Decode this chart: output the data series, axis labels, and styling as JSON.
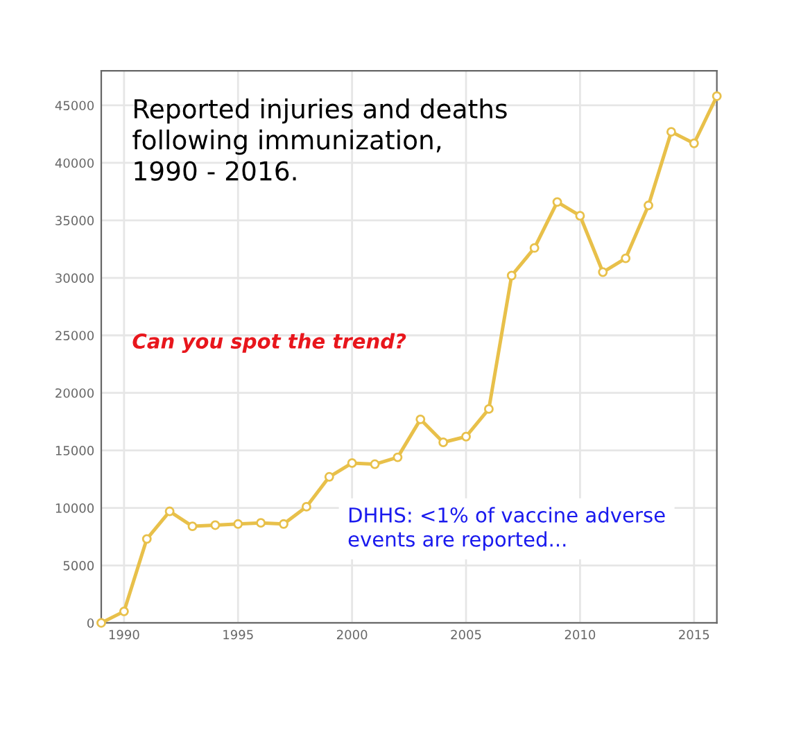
{
  "chart_data": {
    "type": "line",
    "title": "Reported injuries and deaths\nfollowing immunization,\n1990 - 2016.",
    "x": [
      1989,
      1990,
      1991,
      1992,
      1993,
      1994,
      1995,
      1996,
      1997,
      1998,
      1999,
      2000,
      2001,
      2002,
      2003,
      2004,
      2005,
      2006,
      2007,
      2008,
      2009,
      2010,
      2011,
      2012,
      2013,
      2014,
      2015,
      2016
    ],
    "series": [
      {
        "color": "#e8c04a",
        "values": [
          0,
          1000,
          7300,
          9700,
          8400,
          8500,
          8600,
          8700,
          8600,
          10100,
          12700,
          13900,
          13800,
          14400,
          17700,
          15700,
          16200,
          18600,
          30200,
          32600,
          36600,
          35400,
          30500,
          31700,
          36300,
          42700,
          41700,
          45800
        ]
      }
    ],
    "xlim": [
      1989,
      2016
    ],
    "xticks": [
      1990,
      1995,
      2000,
      2005,
      2010,
      2015
    ],
    "ylim": [
      0,
      48000
    ],
    "yticks": [
      0,
      5000,
      10000,
      15000,
      20000,
      25000,
      30000,
      35000,
      40000,
      45000
    ],
    "grid": true,
    "marker": "circle",
    "line_style": "solid",
    "annotations": [
      "Can you spot the trend?",
      "DHHS: <1% of vaccine adverse\nevents are reported..."
    ]
  }
}
